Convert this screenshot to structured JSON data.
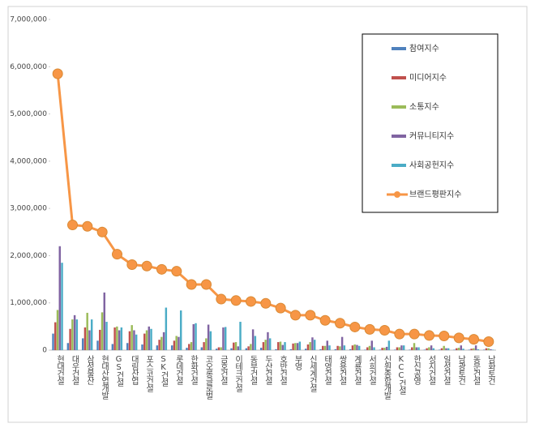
{
  "chart_data": {
    "type": "bar",
    "categories": [
      "현대건설",
      "대우건설",
      "삼성물산",
      "현대산업개발",
      "GS건설",
      "대림산업",
      "포스코건설",
      "SK건설",
      "롯데건설",
      "한화건설",
      "코오롱글로벌",
      "금호건설",
      "이테크건설",
      "동부건설",
      "두산건설",
      "호반건설",
      "부영",
      "신세계건설",
      "태영건설",
      "쌍용건설",
      "계룡건설",
      "서희건설",
      "신원종합개발",
      "KCC건설",
      "한신공영",
      "성지건설",
      "일성건설",
      "남광토건",
      "동문건설",
      "남화토건"
    ],
    "series": [
      {
        "name": "참여지수",
        "kind": "bar",
        "color": "#4f81bd",
        "values": [
          350000,
          150000,
          250000,
          200000,
          130000,
          150000,
          120000,
          100000,
          100000,
          50000,
          60000,
          30000,
          40000,
          40000,
          50000,
          20000,
          20000,
          30000,
          20000,
          20000,
          20000,
          10000,
          10000,
          10000,
          10000,
          10000,
          10000,
          10000,
          10000,
          10000
        ]
      },
      {
        "name": "미디어지수",
        "kind": "bar",
        "color": "#c0504d",
        "values": [
          590000,
          450000,
          480000,
          430000,
          480000,
          400000,
          350000,
          220000,
          200000,
          130000,
          170000,
          60000,
          160000,
          80000,
          170000,
          170000,
          140000,
          120000,
          90000,
          90000,
          100000,
          60000,
          50000,
          60000,
          60000,
          40000,
          40000,
          40000,
          30000,
          40000
        ]
      },
      {
        "name": "소통지수",
        "kind": "bar",
        "color": "#9bbb59",
        "values": [
          850000,
          650000,
          790000,
          800000,
          500000,
          530000,
          420000,
          280000,
          300000,
          170000,
          250000,
          60000,
          170000,
          130000,
          220000,
          180000,
          150000,
          170000,
          90000,
          80000,
          120000,
          90000,
          50000,
          60000,
          150000,
          60000,
          90000,
          50000,
          40000,
          40000
        ]
      },
      {
        "name": "커뮤니티지수",
        "kind": "bar",
        "color": "#8064a2",
        "values": [
          2200000,
          740000,
          420000,
          1220000,
          420000,
          420000,
          500000,
          380000,
          280000,
          550000,
          540000,
          480000,
          80000,
          440000,
          380000,
          110000,
          150000,
          270000,
          200000,
          280000,
          110000,
          200000,
          70000,
          100000,
          60000,
          100000,
          40000,
          100000,
          100000,
          20000
        ]
      },
      {
        "name": "사회공헌지수",
        "kind": "bar",
        "color": "#4bacc6",
        "values": [
          1850000,
          650000,
          650000,
          600000,
          480000,
          330000,
          450000,
          900000,
          840000,
          570000,
          400000,
          490000,
          600000,
          300000,
          250000,
          170000,
          180000,
          220000,
          100000,
          100000,
          90000,
          60000,
          200000,
          100000,
          60000,
          40000,
          40000,
          30000,
          20000,
          10000
        ]
      },
      {
        "name": "브랜드평판지수",
        "kind": "line",
        "color": "#f79646",
        "values": [
          5850000,
          2650000,
          2620000,
          2500000,
          2030000,
          1810000,
          1780000,
          1710000,
          1670000,
          1390000,
          1390000,
          1080000,
          1050000,
          1030000,
          990000,
          890000,
          740000,
          740000,
          630000,
          570000,
          490000,
          440000,
          420000,
          340000,
          340000,
          310000,
          300000,
          260000,
          230000,
          180000
        ]
      }
    ],
    "ylim": [
      0,
      7000000
    ],
    "yticks": [
      0,
      {
        "value": 1000000,
        "label": "1,000,000"
      },
      {
        "value": 2000000,
        "label": "2,000,000"
      },
      {
        "value": 3000000,
        "label": "3,000,000"
      },
      {
        "value": 4000000,
        "label": "4,000,000"
      },
      {
        "value": 5000000,
        "label": "5,000,000"
      },
      {
        "value": 6000000,
        "label": "6,000,000"
      },
      {
        "value": 7000000,
        "label": "7,000,000"
      }
    ],
    "grid": false
  }
}
